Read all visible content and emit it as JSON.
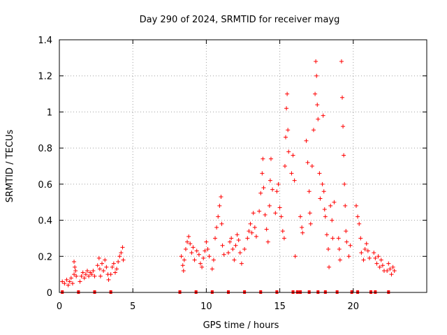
{
  "chart_data": {
    "type": "scatter",
    "title": "Day 290 of 2024, SRMTID for receiver mayg",
    "xlabel": "GPS time / hours",
    "ylabel": "SRMTID / TECUs",
    "xlim": [
      0,
      25
    ],
    "ylim": [
      0,
      1.4
    ],
    "xticks": [
      0,
      5,
      10,
      15,
      20
    ],
    "xtick_labels": [
      "0",
      "5",
      "10",
      "15",
      "20"
    ],
    "yticks": [
      0,
      0.2,
      0.4,
      0.6,
      0.8,
      1.0,
      1.2,
      1.4
    ],
    "ytick_labels": [
      "0",
      "0.2",
      "0.4",
      "0.6",
      "0.8",
      "1",
      "1.2",
      "1.4"
    ],
    "grid": true,
    "series": [
      {
        "name": "SRMTID",
        "color": "#ff0000",
        "marker": "plus",
        "points": [
          [
            0.2,
            0.06
          ],
          [
            0.35,
            0.05
          ],
          [
            0.5,
            0.07
          ],
          [
            0.6,
            0.04
          ],
          [
            0.7,
            0.06
          ],
          [
            0.8,
            0.08
          ],
          [
            0.9,
            0.05
          ],
          [
            1.0,
            0.1
          ],
          [
            1.0,
            0.17
          ],
          [
            1.05,
            0.14
          ],
          [
            1.1,
            0.12
          ],
          [
            1.15,
            0.09
          ],
          [
            1.4,
            0.06
          ],
          [
            1.5,
            0.09
          ],
          [
            1.6,
            0.11
          ],
          [
            1.7,
            0.08
          ],
          [
            1.8,
            0.1
          ],
          [
            1.9,
            0.12
          ],
          [
            2.0,
            0.09
          ],
          [
            2.1,
            0.11
          ],
          [
            2.2,
            0.1
          ],
          [
            2.3,
            0.12
          ],
          [
            2.4,
            0.09
          ],
          [
            2.6,
            0.15
          ],
          [
            2.7,
            0.19
          ],
          [
            2.75,
            0.13
          ],
          [
            2.8,
            0.09
          ],
          [
            2.9,
            0.16
          ],
          [
            3.0,
            0.12
          ],
          [
            3.1,
            0.18
          ],
          [
            3.2,
            0.14
          ],
          [
            3.3,
            0.1
          ],
          [
            3.35,
            0.07
          ],
          [
            3.5,
            0.1
          ],
          [
            3.6,
            0.14
          ],
          [
            3.7,
            0.16
          ],
          [
            3.8,
            0.11
          ],
          [
            3.9,
            0.13
          ],
          [
            4.0,
            0.17
          ],
          [
            4.1,
            0.2
          ],
          [
            4.2,
            0.22
          ],
          [
            4.3,
            0.25
          ],
          [
            4.35,
            0.18
          ],
          [
            8.3,
            0.2
          ],
          [
            8.4,
            0.15
          ],
          [
            8.45,
            0.12
          ],
          [
            8.5,
            0.18
          ],
          [
            8.6,
            0.24
          ],
          [
            8.7,
            0.28
          ],
          [
            8.8,
            0.31
          ],
          [
            8.9,
            0.27
          ],
          [
            9.0,
            0.22
          ],
          [
            9.1,
            0.25
          ],
          [
            9.2,
            0.18
          ],
          [
            9.35,
            0.23
          ],
          [
            9.5,
            0.21
          ],
          [
            9.6,
            0.16
          ],
          [
            9.7,
            0.14
          ],
          [
            9.8,
            0.19
          ],
          [
            9.9,
            0.23
          ],
          [
            10.0,
            0.28
          ],
          [
            10.1,
            0.24
          ],
          [
            10.2,
            0.2
          ],
          [
            10.4,
            0.13
          ],
          [
            10.5,
            0.18
          ],
          [
            10.6,
            0.3
          ],
          [
            10.7,
            0.36
          ],
          [
            10.8,
            0.42
          ],
          [
            10.9,
            0.48
          ],
          [
            11.0,
            0.53
          ],
          [
            11.05,
            0.38
          ],
          [
            11.1,
            0.26
          ],
          [
            11.2,
            0.21
          ],
          [
            11.5,
            0.22
          ],
          [
            11.6,
            0.28
          ],
          [
            11.7,
            0.3
          ],
          [
            11.8,
            0.24
          ],
          [
            11.9,
            0.18
          ],
          [
            12.0,
            0.26
          ],
          [
            12.1,
            0.32
          ],
          [
            12.2,
            0.29
          ],
          [
            12.3,
            0.22
          ],
          [
            12.4,
            0.16
          ],
          [
            12.6,
            0.24
          ],
          [
            12.8,
            0.3
          ],
          [
            12.9,
            0.34
          ],
          [
            13.0,
            0.38
          ],
          [
            13.1,
            0.33
          ],
          [
            13.2,
            0.44
          ],
          [
            13.3,
            0.36
          ],
          [
            13.4,
            0.31
          ],
          [
            13.6,
            0.45
          ],
          [
            13.7,
            0.55
          ],
          [
            13.8,
            0.66
          ],
          [
            13.85,
            0.74
          ],
          [
            13.9,
            0.58
          ],
          [
            14.0,
            0.43
          ],
          [
            14.1,
            0.35
          ],
          [
            14.2,
            0.28
          ],
          [
            14.3,
            0.48
          ],
          [
            14.35,
            0.62
          ],
          [
            14.4,
            0.74
          ],
          [
            14.5,
            0.57
          ],
          [
            14.7,
            0.44
          ],
          [
            14.8,
            0.56
          ],
          [
            14.9,
            0.6
          ],
          [
            15.0,
            0.47
          ],
          [
            15.1,
            0.42
          ],
          [
            15.2,
            0.34
          ],
          [
            15.3,
            0.3
          ],
          [
            15.35,
            0.7
          ],
          [
            15.4,
            0.86
          ],
          [
            15.45,
            1.02
          ],
          [
            15.5,
            1.1
          ],
          [
            15.55,
            0.9
          ],
          [
            15.6,
            0.78
          ],
          [
            15.8,
            0.66
          ],
          [
            15.9,
            0.76
          ],
          [
            16.0,
            0.62
          ],
          [
            16.05,
            0.2
          ],
          [
            16.4,
            0.42
          ],
          [
            16.5,
            0.36
          ],
          [
            16.55,
            0.33
          ],
          [
            16.8,
            0.84
          ],
          [
            16.9,
            0.72
          ],
          [
            17.0,
            0.56
          ],
          [
            17.05,
            0.44
          ],
          [
            17.1,
            0.38
          ],
          [
            17.2,
            0.7
          ],
          [
            17.3,
            0.9
          ],
          [
            17.4,
            1.1
          ],
          [
            17.45,
            1.28
          ],
          [
            17.5,
            1.2
          ],
          [
            17.55,
            1.04
          ],
          [
            17.6,
            0.96
          ],
          [
            17.7,
            0.66
          ],
          [
            17.75,
            0.52
          ],
          [
            17.9,
            0.6
          ],
          [
            17.95,
            0.98
          ],
          [
            18.0,
            0.56
          ],
          [
            18.05,
            0.46
          ],
          [
            18.1,
            0.42
          ],
          [
            18.2,
            0.32
          ],
          [
            18.3,
            0.24
          ],
          [
            18.35,
            0.14
          ],
          [
            18.45,
            0.48
          ],
          [
            18.55,
            0.4
          ],
          [
            18.6,
            0.3
          ],
          [
            18.7,
            0.5
          ],
          [
            19.0,
            0.3
          ],
          [
            19.05,
            0.24
          ],
          [
            19.1,
            0.18
          ],
          [
            19.2,
            1.28
          ],
          [
            19.25,
            1.08
          ],
          [
            19.3,
            0.92
          ],
          [
            19.35,
            0.76
          ],
          [
            19.4,
            0.6
          ],
          [
            19.45,
            0.48
          ],
          [
            19.5,
            0.34
          ],
          [
            19.55,
            0.28
          ],
          [
            19.7,
            0.2
          ],
          [
            19.8,
            0.26
          ],
          [
            20.2,
            0.48
          ],
          [
            20.3,
            0.42
          ],
          [
            20.4,
            0.38
          ],
          [
            20.5,
            0.3
          ],
          [
            20.55,
            0.22
          ],
          [
            20.7,
            0.18
          ],
          [
            20.8,
            0.24
          ],
          [
            20.9,
            0.27
          ],
          [
            21.0,
            0.23
          ],
          [
            21.1,
            0.19
          ],
          [
            21.4,
            0.22
          ],
          [
            21.5,
            0.19
          ],
          [
            21.6,
            0.16
          ],
          [
            21.7,
            0.2
          ],
          [
            21.8,
            0.14
          ],
          [
            21.9,
            0.18
          ],
          [
            22.0,
            0.15
          ],
          [
            22.1,
            0.12
          ],
          [
            22.3,
            0.12
          ],
          [
            22.4,
            0.16
          ],
          [
            22.5,
            0.13
          ],
          [
            22.6,
            0.1
          ],
          [
            22.7,
            0.14
          ],
          [
            22.8,
            0.12
          ]
        ]
      }
    ],
    "baseline_markers": [
      0.2,
      1.3,
      2.4,
      3.5,
      8.2,
      9.3,
      10.4,
      11.5,
      12.6,
      13.7,
      14.8,
      15.9,
      16.2,
      16.4,
      17.0,
      17.6,
      18.1,
      18.9,
      19.9,
      20.3,
      21.2,
      21.5,
      22.4
    ]
  }
}
